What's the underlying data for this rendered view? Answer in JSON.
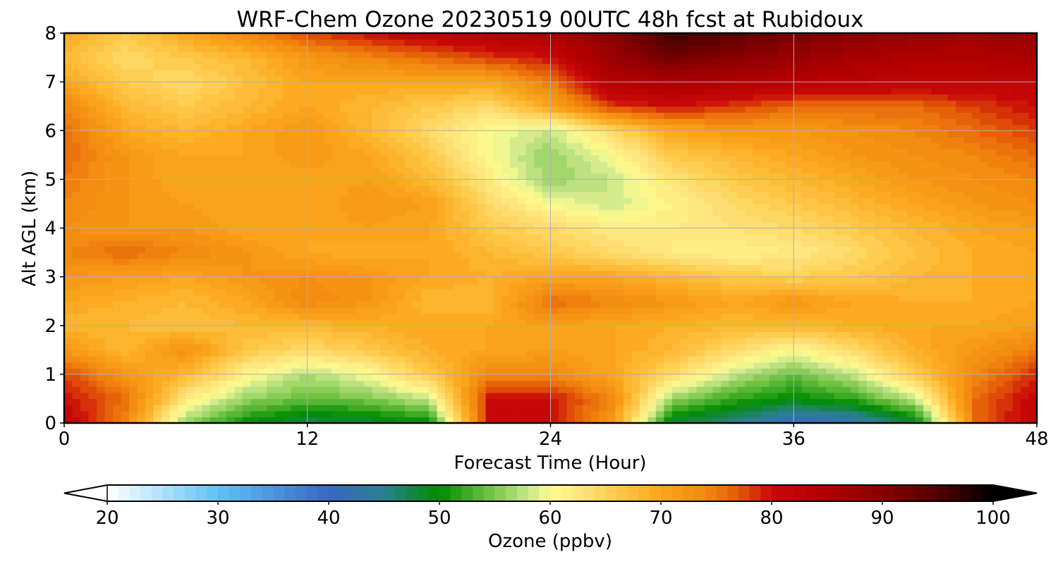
{
  "chart_data": {
    "type": "heatmap",
    "title": "WRF-Chem Ozone  20230519 00UTC 48h fcst at Rubidoux",
    "xlabel": "Forecast Time (Hour)",
    "ylabel": "Alt AGL (km)",
    "xlim": [
      0,
      48
    ],
    "ylim": [
      0,
      8
    ],
    "x_ticks": [
      0,
      12,
      24,
      36,
      48
    ],
    "y_ticks": [
      0,
      1,
      2,
      3,
      4,
      5,
      6,
      7,
      8
    ],
    "grid": true,
    "x": [
      0,
      3,
      6,
      9,
      12,
      15,
      18,
      21,
      24,
      27,
      30,
      33,
      36,
      39,
      42,
      45,
      48
    ],
    "y": [
      0,
      0.5,
      1,
      1.5,
      2,
      2.5,
      3,
      3.5,
      4,
      4.5,
      5,
      5.5,
      6,
      6.5,
      7,
      7.5,
      8
    ],
    "z": [
      [
        82,
        74,
        56,
        50,
        47,
        48,
        50,
        80,
        80,
        72,
        48,
        45,
        40,
        42,
        48,
        76,
        82
      ],
      [
        80,
        76,
        62,
        56,
        54,
        55,
        58,
        80,
        80,
        74,
        56,
        52,
        50,
        52,
        58,
        76,
        81
      ],
      [
        78,
        72,
        68,
        61,
        57,
        60,
        66,
        74,
        74,
        70,
        64,
        58,
        54,
        58,
        66,
        74,
        79
      ],
      [
        72,
        68,
        73,
        66,
        64,
        66,
        69,
        70,
        71,
        70,
        68,
        64,
        60,
        64,
        69,
        72,
        75
      ],
      [
        68,
        68,
        67,
        68,
        68,
        69,
        70,
        70,
        71,
        70,
        69,
        68,
        68,
        69,
        70,
        70,
        71
      ],
      [
        70,
        69,
        68,
        70,
        74,
        72,
        68,
        68,
        76,
        74,
        72,
        70,
        72,
        70,
        69,
        69,
        70
      ],
      [
        72,
        71,
        70,
        72,
        73,
        72,
        70,
        69,
        70,
        70,
        68,
        66,
        65,
        66,
        68,
        69,
        70
      ],
      [
        74,
        76,
        74,
        72,
        70,
        69,
        70,
        68,
        66,
        64,
        62,
        61,
        62,
        64,
        67,
        69,
        70
      ],
      [
        73,
        72,
        72,
        70,
        70,
        71,
        70,
        66,
        64,
        62,
        62,
        63,
        64,
        66,
        68,
        70,
        71
      ],
      [
        74,
        72,
        71,
        70,
        70,
        72,
        71,
        64,
        60,
        58,
        61,
        64,
        66,
        68,
        70,
        72,
        73
      ],
      [
        75,
        72,
        70,
        70,
        70,
        71,
        68,
        62,
        56,
        58,
        63,
        66,
        68,
        70,
        72,
        73,
        74
      ],
      [
        76,
        72,
        70,
        70,
        72,
        70,
        66,
        60,
        56,
        60,
        66,
        68,
        70,
        72,
        73,
        74,
        76
      ],
      [
        76,
        70,
        68,
        70,
        72,
        68,
        64,
        60,
        58,
        64,
        70,
        72,
        72,
        73,
        74,
        76,
        78
      ],
      [
        74,
        68,
        66,
        68,
        70,
        68,
        66,
        64,
        70,
        78,
        80,
        78,
        76,
        76,
        76,
        78,
        80
      ],
      [
        70,
        66,
        64,
        67,
        70,
        70,
        70,
        70,
        75,
        84,
        86,
        85,
        84,
        83,
        82,
        82,
        82
      ],
      [
        68,
        64,
        66,
        68,
        72,
        74,
        76,
        78,
        80,
        88,
        92,
        90,
        88,
        86,
        85,
        85,
        86
      ],
      [
        70,
        66,
        70,
        74,
        78,
        80,
        82,
        84,
        85,
        90,
        96,
        94,
        92,
        90,
        88,
        87,
        88
      ]
    ],
    "colorbar": {
      "label": "Ozone  (ppbv)",
      "ticks": [
        20,
        30,
        40,
        50,
        60,
        70,
        80,
        90,
        100
      ],
      "min": 20,
      "max": 100,
      "extend": "both"
    },
    "colormap": [
      [
        20,
        "#ffffff"
      ],
      [
        30,
        "#5fc2f5"
      ],
      [
        40,
        "#3a66c4"
      ],
      [
        45,
        "#2a8090"
      ],
      [
        50,
        "#008c00"
      ],
      [
        55,
        "#7cc84c"
      ],
      [
        58,
        "#c8e68a"
      ],
      [
        60,
        "#fdfb90"
      ],
      [
        63,
        "#fee27a"
      ],
      [
        66,
        "#fec94a"
      ],
      [
        70,
        "#fba61c"
      ],
      [
        74,
        "#f2890f"
      ],
      [
        77,
        "#e45a08"
      ],
      [
        80,
        "#c80808"
      ],
      [
        85,
        "#b00000"
      ],
      [
        90,
        "#8a0000"
      ],
      [
        95,
        "#500000"
      ],
      [
        100,
        "#000000"
      ]
    ]
  }
}
